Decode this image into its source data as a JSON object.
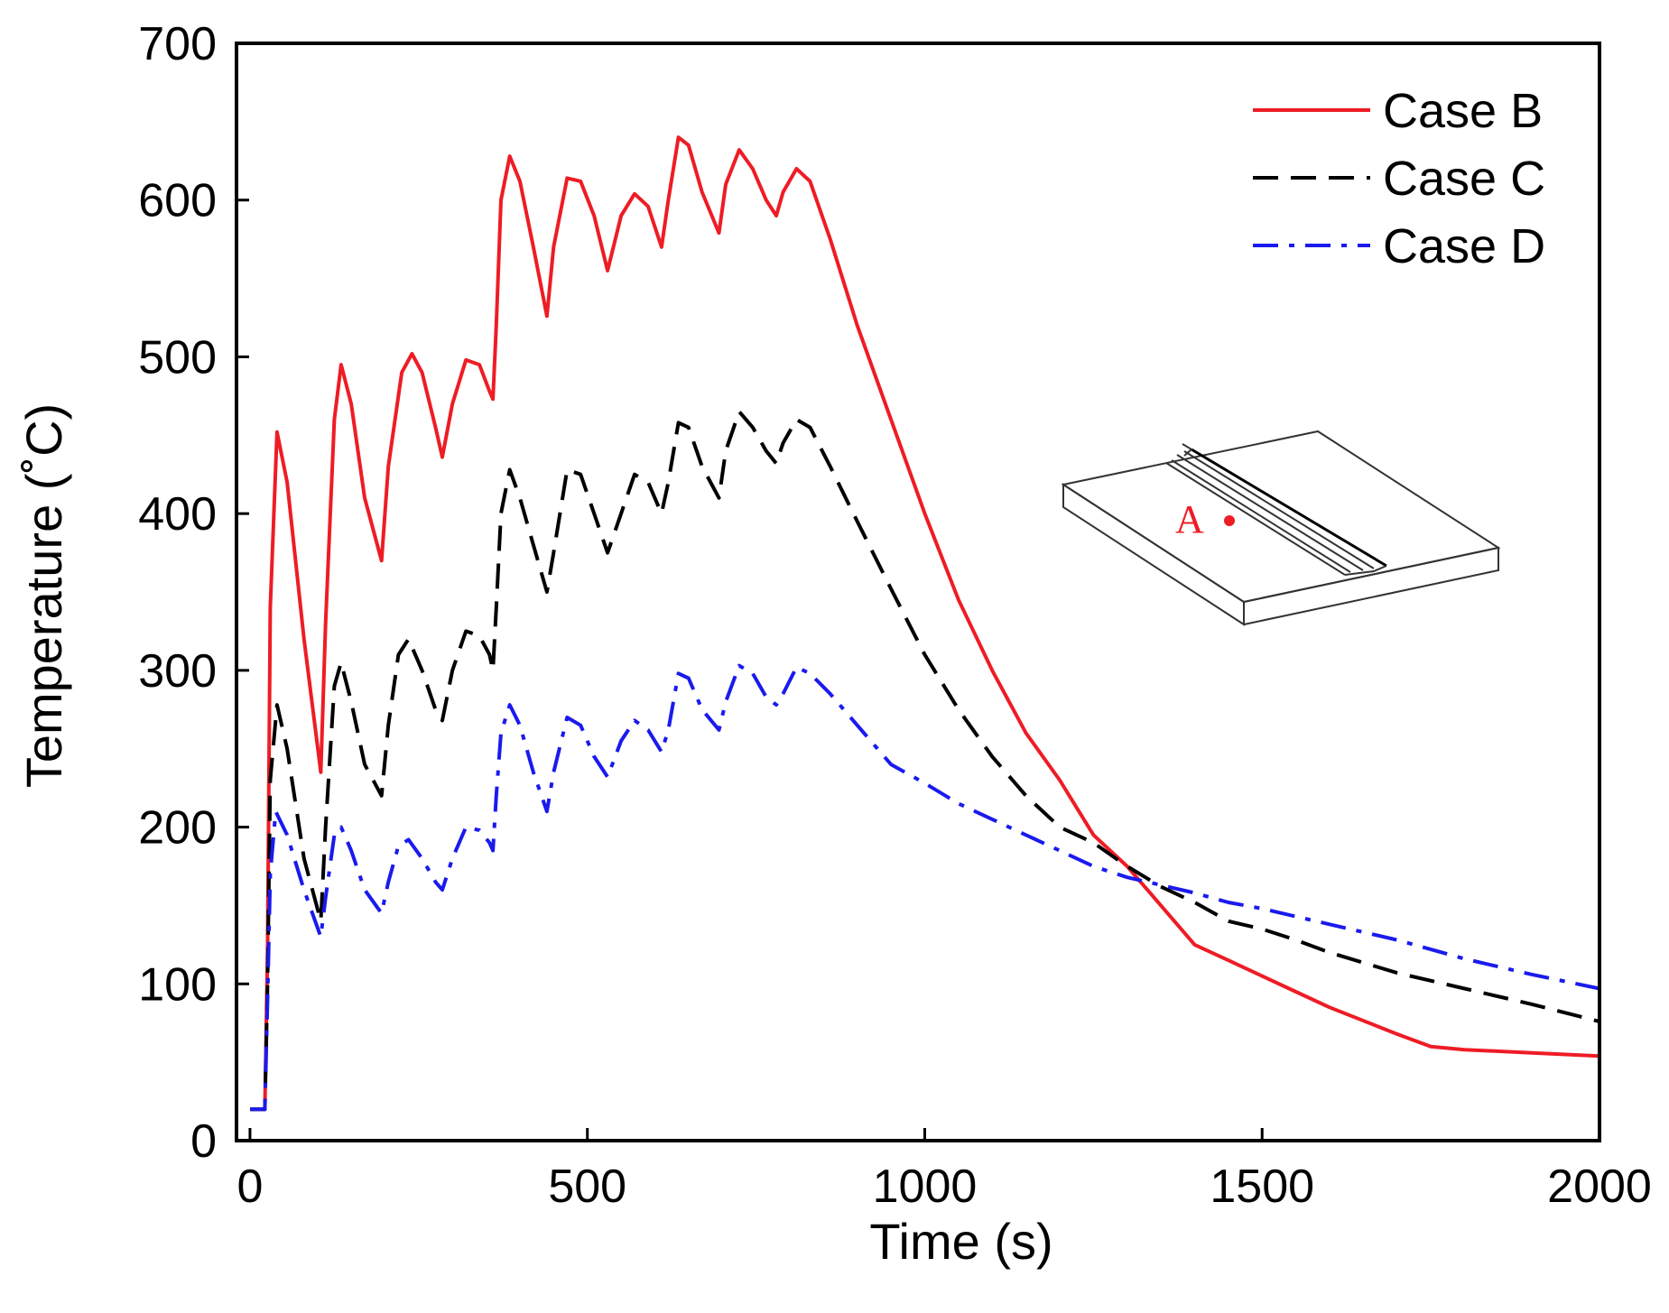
{
  "chart_data": {
    "type": "line",
    "title": "",
    "xlabel": "Time (s)",
    "ylabel": "Temperature (˚C)",
    "xlim": [
      -20,
      2000
    ],
    "ylim": [
      0,
      700
    ],
    "xticks": [
      0,
      500,
      1000,
      1500,
      2000
    ],
    "yticks": [
      0,
      100,
      200,
      300,
      400,
      500,
      600,
      700
    ],
    "xtick_labels": [
      "0",
      "500",
      "1000",
      "1500",
      "2000"
    ],
    "ytick_labels": [
      "0",
      "100",
      "200",
      "300",
      "400",
      "500",
      "600",
      "700"
    ],
    "legend_position": "top-right",
    "series": [
      {
        "name": "Case B",
        "color": "#ee1c25",
        "dash": "solid",
        "points": [
          [
            0,
            20
          ],
          [
            22,
            20
          ],
          [
            26,
            120
          ],
          [
            30,
            340
          ],
          [
            40,
            452
          ],
          [
            55,
            420
          ],
          [
            80,
            320
          ],
          [
            105,
            235
          ],
          [
            112,
            330
          ],
          [
            125,
            460
          ],
          [
            135,
            495
          ],
          [
            150,
            470
          ],
          [
            170,
            410
          ],
          [
            195,
            370
          ],
          [
            205,
            430
          ],
          [
            225,
            490
          ],
          [
            240,
            502
          ],
          [
            255,
            490
          ],
          [
            275,
            455
          ],
          [
            285,
            436
          ],
          [
            300,
            470
          ],
          [
            320,
            498
          ],
          [
            340,
            495
          ],
          [
            355,
            478
          ],
          [
            360,
            473
          ],
          [
            365,
            520
          ],
          [
            372,
            600
          ],
          [
            385,
            628
          ],
          [
            400,
            612
          ],
          [
            420,
            570
          ],
          [
            440,
            526
          ],
          [
            450,
            570
          ],
          [
            470,
            614
          ],
          [
            490,
            612
          ],
          [
            510,
            590
          ],
          [
            530,
            555
          ],
          [
            550,
            590
          ],
          [
            570,
            604
          ],
          [
            590,
            596
          ],
          [
            610,
            570
          ],
          [
            620,
            600
          ],
          [
            635,
            640
          ],
          [
            650,
            635
          ],
          [
            670,
            605
          ],
          [
            695,
            579
          ],
          [
            705,
            610
          ],
          [
            725,
            632
          ],
          [
            745,
            620
          ],
          [
            765,
            600
          ],
          [
            780,
            590
          ],
          [
            790,
            605
          ],
          [
            810,
            620
          ],
          [
            830,
            612
          ],
          [
            860,
            575
          ],
          [
            900,
            520
          ],
          [
            950,
            460
          ],
          [
            1000,
            400
          ],
          [
            1050,
            345
          ],
          [
            1100,
            300
          ],
          [
            1150,
            260
          ],
          [
            1200,
            230
          ],
          [
            1250,
            195
          ],
          [
            1300,
            175
          ],
          [
            1350,
            150
          ],
          [
            1400,
            125
          ],
          [
            1450,
            115
          ],
          [
            1500,
            105
          ],
          [
            1550,
            95
          ],
          [
            1600,
            85
          ],
          [
            1700,
            68
          ],
          [
            1750,
            60
          ],
          [
            1800,
            58
          ],
          [
            1900,
            56
          ],
          [
            2000,
            54
          ]
        ]
      },
      {
        "name": "Case C",
        "color": "#000000",
        "dash": "dashed",
        "points": [
          [
            0,
            20
          ],
          [
            22,
            20
          ],
          [
            26,
            100
          ],
          [
            30,
            230
          ],
          [
            40,
            278
          ],
          [
            55,
            250
          ],
          [
            80,
            180
          ],
          [
            105,
            140
          ],
          [
            112,
            200
          ],
          [
            125,
            290
          ],
          [
            135,
            305
          ],
          [
            150,
            280
          ],
          [
            170,
            240
          ],
          [
            195,
            220
          ],
          [
            205,
            265
          ],
          [
            220,
            310
          ],
          [
            235,
            320
          ],
          [
            255,
            300
          ],
          [
            275,
            275
          ],
          [
            285,
            268
          ],
          [
            300,
            300
          ],
          [
            320,
            325
          ],
          [
            340,
            322
          ],
          [
            355,
            310
          ],
          [
            360,
            300
          ],
          [
            365,
            340
          ],
          [
            372,
            400
          ],
          [
            385,
            428
          ],
          [
            400,
            410
          ],
          [
            420,
            380
          ],
          [
            440,
            350
          ],
          [
            450,
            375
          ],
          [
            470,
            428
          ],
          [
            490,
            425
          ],
          [
            510,
            400
          ],
          [
            530,
            375
          ],
          [
            550,
            400
          ],
          [
            570,
            425
          ],
          [
            590,
            420
          ],
          [
            610,
            400
          ],
          [
            620,
            420
          ],
          [
            635,
            458
          ],
          [
            650,
            455
          ],
          [
            670,
            430
          ],
          [
            695,
            410
          ],
          [
            705,
            440
          ],
          [
            725,
            465
          ],
          [
            745,
            455
          ],
          [
            765,
            440
          ],
          [
            780,
            432
          ],
          [
            790,
            445
          ],
          [
            810,
            460
          ],
          [
            830,
            455
          ],
          [
            860,
            430
          ],
          [
            900,
            395
          ],
          [
            950,
            352
          ],
          [
            1000,
            310
          ],
          [
            1050,
            275
          ],
          [
            1100,
            245
          ],
          [
            1150,
            220
          ],
          [
            1200,
            200
          ],
          [
            1250,
            190
          ],
          [
            1300,
            175
          ],
          [
            1350,
            162
          ],
          [
            1400,
            152
          ],
          [
            1450,
            140
          ],
          [
            1500,
            135
          ],
          [
            1550,
            128
          ],
          [
            1600,
            120
          ],
          [
            1700,
            107
          ],
          [
            1800,
            97
          ],
          [
            1900,
            87
          ],
          [
            2000,
            76
          ]
        ]
      },
      {
        "name": "Case D",
        "color": "#1a1aee",
        "dash": "dashdot",
        "points": [
          [
            0,
            20
          ],
          [
            22,
            20
          ],
          [
            26,
            90
          ],
          [
            30,
            170
          ],
          [
            38,
            210
          ],
          [
            55,
            195
          ],
          [
            80,
            160
          ],
          [
            105,
            130
          ],
          [
            112,
            155
          ],
          [
            125,
            195
          ],
          [
            135,
            200
          ],
          [
            150,
            185
          ],
          [
            170,
            160
          ],
          [
            195,
            145
          ],
          [
            205,
            165
          ],
          [
            220,
            188
          ],
          [
            235,
            192
          ],
          [
            255,
            180
          ],
          [
            275,
            165
          ],
          [
            285,
            160
          ],
          [
            300,
            180
          ],
          [
            320,
            200
          ],
          [
            340,
            198
          ],
          [
            355,
            190
          ],
          [
            360,
            185
          ],
          [
            365,
            220
          ],
          [
            372,
            260
          ],
          [
            385,
            278
          ],
          [
            400,
            265
          ],
          [
            420,
            235
          ],
          [
            440,
            210
          ],
          [
            450,
            235
          ],
          [
            470,
            270
          ],
          [
            490,
            265
          ],
          [
            510,
            245
          ],
          [
            530,
            232
          ],
          [
            550,
            255
          ],
          [
            570,
            268
          ],
          [
            590,
            262
          ],
          [
            610,
            248
          ],
          [
            620,
            262
          ],
          [
            635,
            298
          ],
          [
            650,
            295
          ],
          [
            670,
            275
          ],
          [
            695,
            262
          ],
          [
            705,
            280
          ],
          [
            725,
            303
          ],
          [
            745,
            298
          ],
          [
            765,
            283
          ],
          [
            780,
            278
          ],
          [
            790,
            285
          ],
          [
            810,
            302
          ],
          [
            830,
            298
          ],
          [
            860,
            285
          ],
          [
            900,
            265
          ],
          [
            950,
            240
          ],
          [
            1000,
            228
          ],
          [
            1050,
            215
          ],
          [
            1100,
            205
          ],
          [
            1150,
            195
          ],
          [
            1200,
            185
          ],
          [
            1250,
            175
          ],
          [
            1300,
            168
          ],
          [
            1350,
            163
          ],
          [
            1400,
            158
          ],
          [
            1450,
            152
          ],
          [
            1500,
            148
          ],
          [
            1550,
            143
          ],
          [
            1600,
            138
          ],
          [
            1700,
            128
          ],
          [
            1800,
            116
          ],
          [
            1900,
            106
          ],
          [
            2000,
            97
          ]
        ]
      }
    ],
    "inset": {
      "label": "A",
      "label_color": "#ee1c25",
      "description_name": "specimen-plate-with-weld-bead"
    }
  }
}
